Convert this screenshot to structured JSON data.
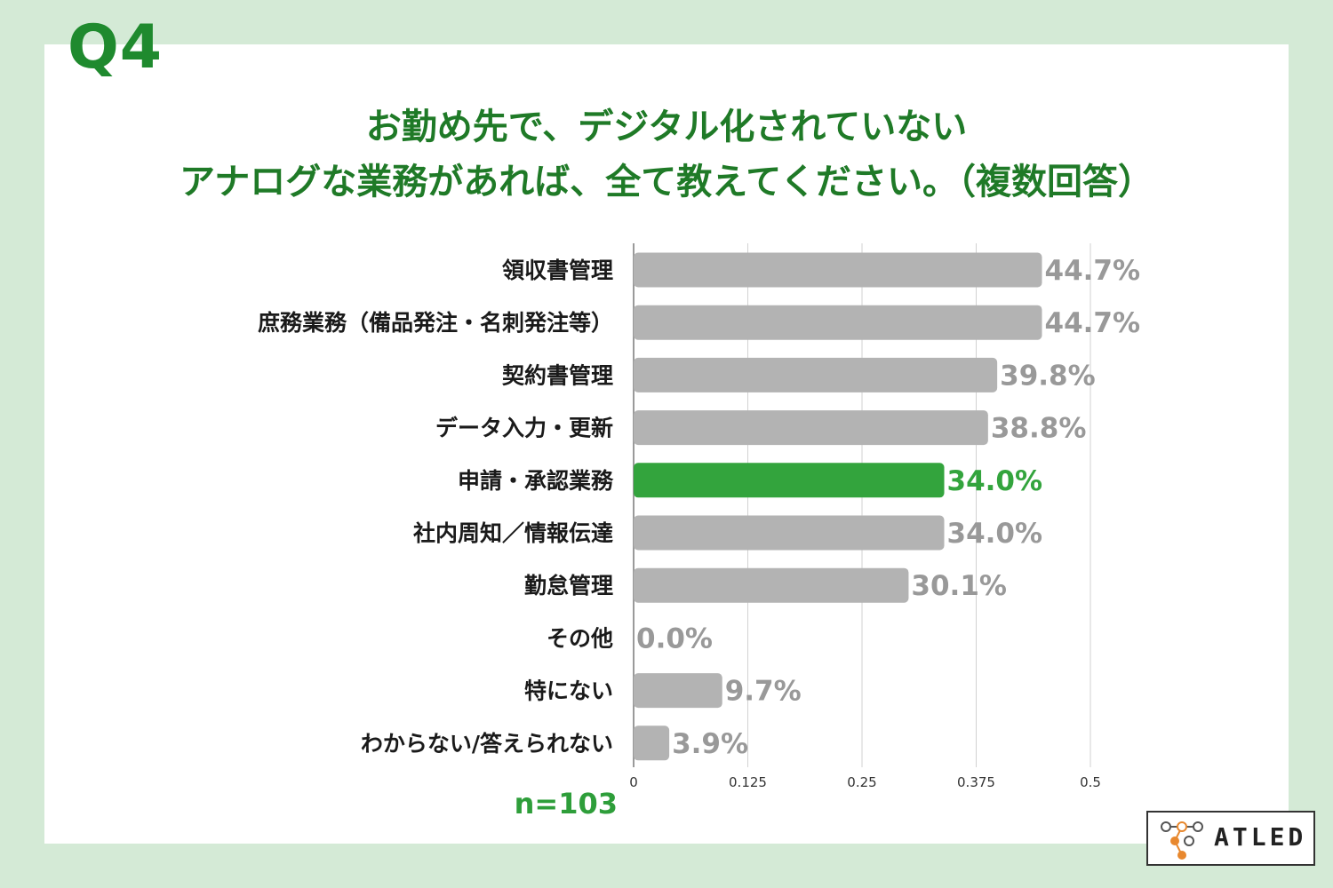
{
  "header": {
    "question": "Q4",
    "title_line1": "お勤め先で、デジタル化されていない",
    "title_line2": "アナログな業務があれば、全て教えてください。（複数回答）"
  },
  "sample": "n=103",
  "brand": {
    "logo_text": "ATLED"
  },
  "colors": {
    "background": "#d4ead6",
    "title": "#1f7a27",
    "bar_default": "#b3b3b3",
    "bar_highlight": "#33a43d",
    "value_default": "#999999",
    "value_highlight": "#33a43d"
  },
  "chart_data": {
    "type": "bar",
    "orientation": "horizontal",
    "categories": [
      "領収書管理",
      "庶務業務（備品発注・名刺発注等）",
      "契約書管理",
      "データ入力・更新",
      "申請・承認業務",
      "社内周知／情報伝達",
      "勤怠管理",
      "その他",
      "特にない",
      "わからない/答えられない"
    ],
    "values": [
      0.447,
      0.447,
      0.398,
      0.388,
      0.34,
      0.34,
      0.301,
      0.0,
      0.097,
      0.039
    ],
    "value_labels": [
      "44.7%",
      "44.7%",
      "39.8%",
      "38.8%",
      "34.0%",
      "34.0%",
      "30.1%",
      "0.0%",
      "9.7%",
      "3.9%"
    ],
    "highlight_index": 4,
    "xlim": [
      0,
      0.5
    ],
    "xticks": [
      "0",
      "0.125",
      "0.25",
      "0.375",
      "0.5"
    ],
    "grid": true
  }
}
